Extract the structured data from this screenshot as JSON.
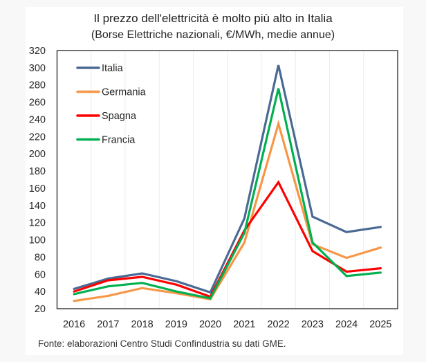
{
  "chart_data": {
    "type": "line",
    "title": "Il prezzo dell'elettricità è molto più alto in Italia",
    "subtitle": "(Borse Elettriche nazionali, €/MWh, medie annue)",
    "xlabel": "",
    "ylabel": "",
    "categories": [
      "2016",
      "2017",
      "2018",
      "2019",
      "2020",
      "2021",
      "2022",
      "2023",
      "2024",
      "2025"
    ],
    "ylim": [
      20,
      320
    ],
    "yticks": [
      20,
      40,
      60,
      80,
      100,
      120,
      140,
      160,
      180,
      200,
      220,
      240,
      260,
      280,
      300,
      320
    ],
    "grid": "vertical category separators",
    "legend_position": "top-left",
    "series": [
      {
        "name": "Italia",
        "color": "#4a6a94",
        "values": [
          43,
          55,
          61,
          52,
          39,
          125,
          303,
          127,
          109,
          115
        ]
      },
      {
        "name": "Germania",
        "color": "#f79646",
        "values": [
          29,
          35,
          44,
          38,
          31,
          97,
          235,
          95,
          79,
          91
        ]
      },
      {
        "name": "Spagna",
        "color": "#ff0000",
        "values": [
          40,
          53,
          57,
          48,
          34,
          111,
          167,
          87,
          63,
          67
        ]
      },
      {
        "name": "Francia",
        "color": "#00b050",
        "values": [
          37,
          46,
          50,
          40,
          32,
          108,
          276,
          97,
          58,
          62
        ]
      }
    ],
    "source": "Fonte: elaborazioni Centro Studi Confindustria su dati GME."
  }
}
